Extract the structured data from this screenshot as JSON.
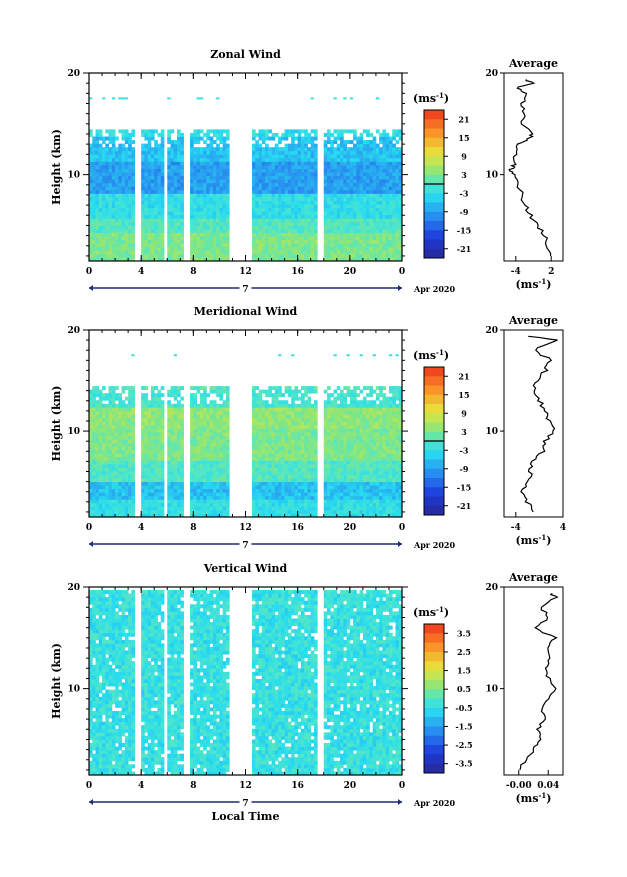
{
  "chart_data": [
    {
      "type": "heatmap",
      "title": "Zonal Wind",
      "ylabel": "Height (km)",
      "x_ticks": [
        "0",
        "4",
        "8",
        "12",
        "16",
        "20",
        "0"
      ],
      "y_ticks": [
        "20",
        "10"
      ],
      "xlim": [
        0,
        24
      ],
      "ylim": [
        1.5,
        20
      ],
      "date_label": "7",
      "date_suffix": "Apr 2020",
      "colorbar": {
        "unit": "(ms",
        "unit_exp": "-1",
        "unit_close": ")",
        "ticks": [
          "21",
          "15",
          "9",
          "3",
          "-3",
          "-9",
          "-15",
          "-21"
        ],
        "range": [
          -24,
          24
        ]
      },
      "data_gaps_hours": [
        [
          3.6,
          4.0
        ],
        [
          5.8,
          6.1
        ],
        [
          7.2,
          7.7
        ],
        [
          10.8,
          12.4
        ],
        [
          17.6,
          18.0
        ]
      ],
      "profile_bands": [
        {
          "z": [
            1.5,
            4
          ],
          "value": 3
        },
        {
          "z": [
            4,
            5.5
          ],
          "value": 0
        },
        {
          "z": [
            5.5,
            8
          ],
          "value": -3
        },
        {
          "z": [
            8,
            11
          ],
          "value": -9
        },
        {
          "z": [
            11,
            13.5
          ],
          "value": -6
        },
        {
          "z": [
            13.5,
            14.2
          ],
          "value": -3
        }
      ],
      "average": {
        "title": "Average",
        "xlabel": "(ms",
        "xlabel_exp": "-1",
        "xlabel_close": ")",
        "x_ticks": [
          "-4",
          "2"
        ],
        "y_ticks": [
          "20",
          "10"
        ],
        "xlim": [
          -6,
          4
        ],
        "height_km": [
          2,
          3,
          4,
          5,
          6,
          7,
          8,
          9,
          10,
          10.5,
          11,
          12,
          13,
          13.5,
          14,
          15,
          16,
          17,
          18,
          18.5,
          19,
          19.5
        ],
        "values": [
          2.0,
          1.5,
          1.0,
          -0.5,
          -1.5,
          -2.5,
          -3.0,
          -3.5,
          -4.5,
          -4.8,
          -4.2,
          -4.0,
          -3.8,
          -2.0,
          -1.0,
          -3.0,
          -2.5,
          -3.0,
          -2.0,
          -4.0,
          -1.0,
          -3.0
        ]
      }
    },
    {
      "type": "heatmap",
      "title": "Meridional Wind",
      "ylabel": "Height (km)",
      "x_ticks": [
        "0",
        "4",
        "8",
        "12",
        "16",
        "20",
        "0"
      ],
      "y_ticks": [
        "20",
        "10"
      ],
      "xlim": [
        0,
        24
      ],
      "ylim": [
        1.5,
        20
      ],
      "date_label": "7",
      "date_suffix": "Apr 2020",
      "colorbar": {
        "unit": "(ms",
        "unit_exp": "-1",
        "unit_close": ")",
        "ticks": [
          "21",
          "15",
          "9",
          "3",
          "-3",
          "-9",
          "-15",
          "-21"
        ],
        "range": [
          -24,
          24
        ]
      },
      "data_gaps_hours": [
        [
          3.6,
          4.0
        ],
        [
          5.8,
          6.1
        ],
        [
          7.2,
          7.7
        ],
        [
          10.8,
          12.4
        ],
        [
          17.6,
          18.0
        ]
      ],
      "profile_bands": [
        {
          "z": [
            1.5,
            3
          ],
          "value": -3
        },
        {
          "z": [
            3,
            5
          ],
          "value": -6
        },
        {
          "z": [
            5,
            7
          ],
          "value": 0
        },
        {
          "z": [
            7,
            10
          ],
          "value": 3
        },
        {
          "z": [
            10,
            12
          ],
          "value": 4
        },
        {
          "z": [
            12,
            14
          ],
          "value": -1
        }
      ],
      "average": {
        "title": "Average",
        "xlabel": "(ms",
        "xlabel_exp": "-1",
        "xlabel_close": ")",
        "x_ticks": [
          "-4",
          "4"
        ],
        "y_ticks": [
          "20",
          "10"
        ],
        "xlim": [
          -6,
          4
        ],
        "height_km": [
          2,
          3,
          4,
          5,
          6,
          7,
          8,
          9,
          10,
          11,
          12,
          13,
          14,
          15,
          16,
          17,
          18,
          19,
          19.5
        ],
        "values": [
          -1.0,
          -2.0,
          -3.0,
          -2.0,
          -1.5,
          -1.0,
          0.5,
          1.0,
          2.5,
          1.5,
          1.0,
          0.0,
          -1.0,
          -0.5,
          1.0,
          2.0,
          -1.0,
          3.0,
          -3.0
        ]
      }
    },
    {
      "type": "heatmap",
      "title": "Vertical Wind",
      "ylabel": "Height (km)",
      "xlabel": "Local Time",
      "x_ticks": [
        "0",
        "4",
        "8",
        "12",
        "16",
        "20",
        "0"
      ],
      "y_ticks": [
        "20",
        "10"
      ],
      "xlim": [
        0,
        24
      ],
      "ylim": [
        1.5,
        20
      ],
      "date_label": "7",
      "date_suffix": "Apr 2020",
      "colorbar": {
        "unit": "(ms",
        "unit_exp": "-1",
        "unit_close": ")",
        "ticks": [
          "3.5",
          "2.5",
          "1.5",
          "0.5",
          "-0.5",
          "-1.5",
          "-2.5",
          "-3.5"
        ],
        "range": [
          -4,
          4
        ]
      },
      "data_gaps_hours": [
        [
          3.6,
          4.0
        ],
        [
          5.8,
          6.1
        ],
        [
          7.2,
          7.7
        ],
        [
          10.8,
          12.4
        ],
        [
          17.6,
          18.0
        ]
      ],
      "profile_bands": [
        {
          "z": [
            1.5,
            20
          ],
          "value": -0.4
        }
      ],
      "average": {
        "title": "Average",
        "xlabel": "(ms",
        "xlabel_exp": "-1",
        "xlabel_close": ")",
        "x_ticks": [
          "-0.00",
          "0.04"
        ],
        "y_ticks": [
          "20",
          "10"
        ],
        "xlim": [
          -0.02,
          0.06
        ],
        "height_km": [
          2,
          3,
          4,
          5,
          6,
          7,
          8,
          9,
          10,
          11,
          12,
          13,
          14,
          15,
          16,
          17,
          18,
          19,
          19.5
        ],
        "values": [
          0.0,
          0.01,
          0.02,
          0.03,
          0.025,
          0.035,
          0.03,
          0.04,
          0.05,
          0.04,
          0.035,
          0.045,
          0.04,
          0.05,
          0.02,
          0.04,
          0.03,
          0.05,
          0.04
        ]
      }
    }
  ]
}
